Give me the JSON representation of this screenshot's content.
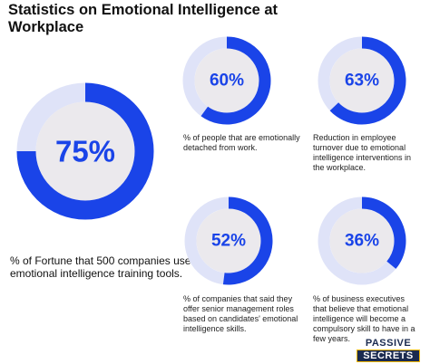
{
  "header": {
    "title": "Statistics on Emotional Intelligence at Workplace"
  },
  "colors": {
    "accent": "#1a44e8",
    "track": "#dfe3f8",
    "inner": "#ebe9ed",
    "big_inner": "#eeecf0",
    "text": "#111111",
    "logo_navy": "#1a2a4f",
    "logo_gold": "#f2b705"
  },
  "chart_data": [
    {
      "type": "pie",
      "style": "donut",
      "values": [
        75,
        25
      ],
      "label": "75%",
      "description": "% of Fortune that 500 companies use emotional intelligence training tools."
    },
    {
      "type": "pie",
      "style": "donut",
      "values": [
        60,
        40
      ],
      "label": "60%",
      "description": "% of people that are emotionally detached from work."
    },
    {
      "type": "pie",
      "style": "donut",
      "values": [
        63,
        37
      ],
      "label": "63%",
      "description": "Reduction in employee turnover due to emotional intelligence interventions in the workplace."
    },
    {
      "type": "pie",
      "style": "donut",
      "values": [
        52,
        48
      ],
      "label": "52%",
      "description": "% of companies that said they offer senior management roles based on candidates' emotional intelligence skills."
    },
    {
      "type": "pie",
      "style": "donut",
      "values": [
        36,
        64
      ],
      "label": "36%",
      "description": "% of business executives that believe that emotional intelligence will become a compulsory skill to have in a few years."
    }
  ],
  "logo": {
    "line1": "PASSIVE",
    "line2": "SECRETS"
  }
}
